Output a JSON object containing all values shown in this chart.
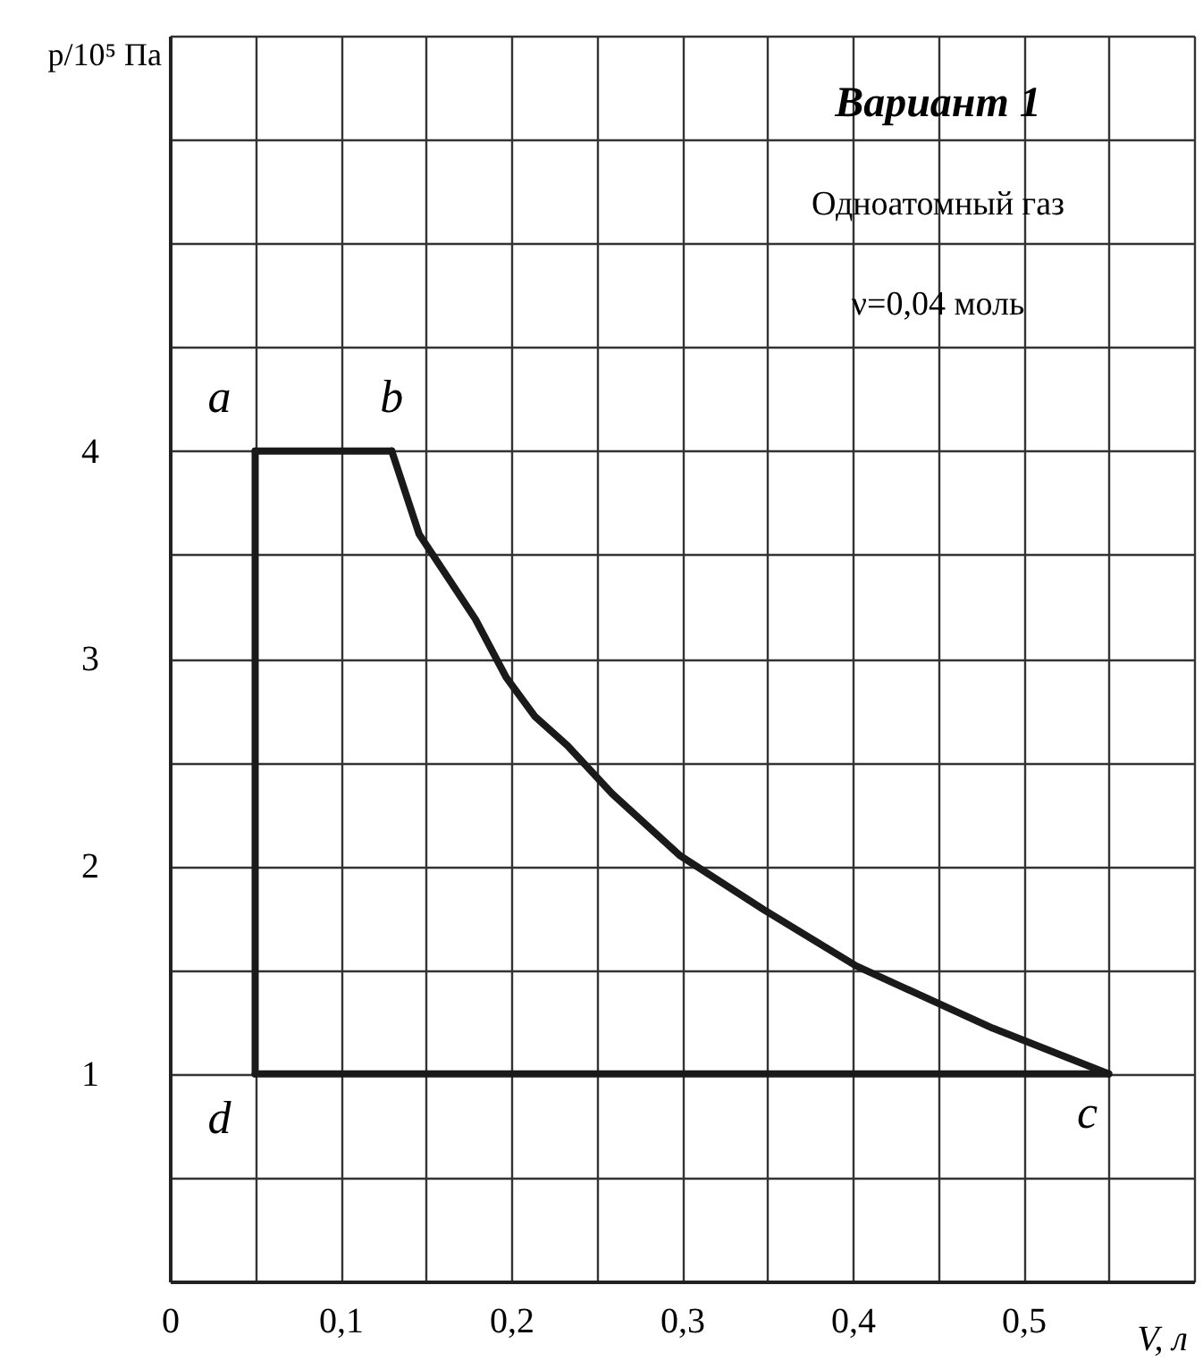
{
  "chart_data": {
    "type": "line",
    "xlabel": "V, л",
    "ylabel": "p/10⁵ Па",
    "annotations": [
      "Вариант 1",
      "Одноатомный газ",
      "ν=0,04 моль",
      {
        "text": "a",
        "x": 0.05,
        "y": 4
      },
      {
        "text": "b",
        "x": 0.13,
        "y": 4
      },
      {
        "text": "c",
        "x": 0.55,
        "y": 1
      },
      {
        "text": "d",
        "x": 0.05,
        "y": 1
      }
    ],
    "series": [
      {
        "color": "#1a1a1a",
        "x": [
          0.05,
          0.13
        ],
        "values": [
          4,
          4
        ]
      },
      {
        "color": "#1a1a1a",
        "x": [
          0.13,
          0.146,
          0.179,
          0.197,
          0.214,
          0.233,
          0.259,
          0.299,
          0.348,
          0.402,
          0.482,
          0.55
        ],
        "values": [
          4,
          3.6,
          3.19,
          2.91,
          2.72,
          2.58,
          2.35,
          2.05,
          1.79,
          1.52,
          1.22,
          1
        ]
      },
      {
        "color": "#1a1a1a",
        "x": [
          0.55,
          0.05
        ],
        "values": [
          1,
          1
        ]
      },
      {
        "color": "#1a1a1a",
        "x": [
          0.05,
          0.05
        ],
        "values": [
          1,
          4
        ]
      }
    ],
    "xlim": [
      0,
      0.6
    ],
    "ylim": [
      0,
      6
    ],
    "xticks": [
      0,
      {
        "value": 0.05,
        "label": null
      },
      {
        "value": 0.1,
        "label": "0,1"
      },
      {
        "value": 0.15,
        "label": null
      },
      {
        "value": 0.2,
        "label": "0,2"
      },
      {
        "value": 0.25,
        "label": null
      },
      {
        "value": 0.3,
        "label": "0,3"
      },
      {
        "value": 0.35,
        "label": null
      },
      {
        "value": 0.4,
        "label": "0,4"
      },
      {
        "value": 0.45,
        "label": null
      },
      {
        "value": 0.5,
        "label": "0,5"
      },
      {
        "value": 0.55,
        "label": null
      },
      {
        "value": 0.6,
        "label": null
      }
    ],
    "yticks": [
      {
        "value": 0.5,
        "label": null
      },
      1,
      {
        "value": 1.5,
        "label": null
      },
      2,
      {
        "value": 2.5,
        "label": null
      },
      3,
      {
        "value": 3.5,
        "label": null
      },
      4,
      {
        "value": 4.5,
        "label": null
      },
      {
        "value": 5,
        "label": null
      },
      {
        "value": 5.5,
        "label": null
      },
      {
        "value": 6,
        "label": null
      }
    ],
    "grid": true
  }
}
